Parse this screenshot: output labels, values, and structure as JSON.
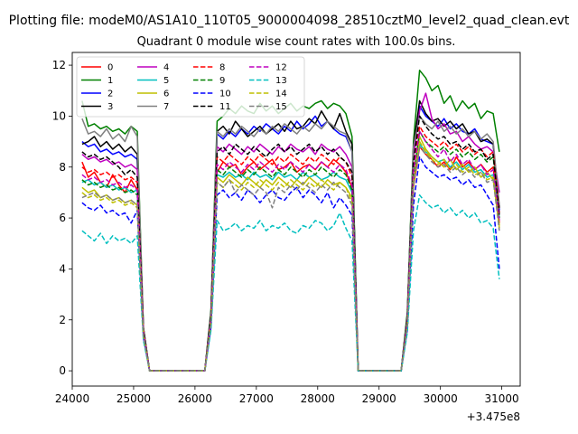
{
  "figure": {
    "suptitle": "Plotting file: modeM0/AS1A10_110T05_9000004098_28510cztM0_level2_quad_clean.evt"
  },
  "chart_data": {
    "type": "line",
    "title": "Quadrant 0 module wise count rates with 100.0s bins.",
    "xlabel": "",
    "ylabel": "",
    "x_offset_label": "+3.475e8",
    "xlim": [
      24000,
      31300
    ],
    "ylim": [
      -0.6,
      12.5
    ],
    "xticks": [
      24000,
      25000,
      26000,
      27000,
      28000,
      29000,
      30000,
      31000
    ],
    "yticks": [
      0,
      2,
      4,
      6,
      8,
      10,
      12
    ],
    "grid": false,
    "legend": {
      "position": "top-left",
      "ncol": 4
    },
    "x": [
      24160,
      24260,
      24360,
      24460,
      24560,
      24660,
      24760,
      24860,
      24960,
      25060,
      25160,
      25260,
      25360,
      25460,
      25560,
      25660,
      25760,
      25860,
      25960,
      26060,
      26160,
      26260,
      26360,
      26460,
      26560,
      26660,
      26760,
      26860,
      26960,
      27060,
      27160,
      27260,
      27360,
      27460,
      27560,
      27660,
      27760,
      27860,
      27960,
      28060,
      28160,
      28260,
      28360,
      28460,
      28560,
      28660,
      28760,
      28860,
      28960,
      29060,
      29160,
      29260,
      29360,
      29460,
      29560,
      29660,
      29760,
      29860,
      29960,
      30060,
      30160,
      30260,
      30360,
      30460,
      30560,
      30660,
      30760,
      30860,
      30960
    ],
    "series": [
      {
        "name": "0",
        "color": "#ff0000",
        "dash": "solid",
        "values": [
          8.2,
          7.6,
          7.8,
          7.4,
          7.2,
          7.7,
          7.3,
          7.0,
          7.5,
          7.1,
          1.6,
          0,
          0,
          0,
          0,
          0,
          0,
          0,
          0,
          0,
          0,
          2,
          7.8,
          8.2,
          8.0,
          8.1,
          7.7,
          8.0,
          8.2,
          7.9,
          8.1,
          8.3,
          7.9,
          8.0,
          8.2,
          7.8,
          8.0,
          8.1,
          7.9,
          8.2,
          8.0,
          8.3,
          8.1,
          7.8,
          7.2,
          0,
          0,
          0,
          0,
          0,
          0,
          0,
          0,
          1.8,
          7.2,
          8.8,
          8.5,
          8.3,
          8.0,
          8.2,
          7.9,
          8.4,
          8.0,
          8.2,
          7.9,
          8.1,
          7.8,
          8.0,
          5.8
        ]
      },
      {
        "name": "1",
        "color": "#008000",
        "dash": "solid",
        "values": [
          10.6,
          9.6,
          9.7,
          9.5,
          9.6,
          9.4,
          9.5,
          9.3,
          9.6,
          9.4,
          1.7,
          0,
          0,
          0,
          0,
          0,
          0,
          0,
          0,
          0,
          0,
          2.4,
          9.8,
          10.0,
          10.3,
          10.1,
          10.4,
          10.2,
          10.1,
          10.5,
          10.2,
          10.4,
          10.1,
          10.3,
          10.5,
          10.2,
          10.4,
          10.3,
          10.5,
          10.6,
          10.3,
          10.5,
          10.4,
          10.1,
          9.2,
          0,
          0,
          0,
          0,
          0,
          0,
          0,
          0,
          2.3,
          9.0,
          11.8,
          11.5,
          11.0,
          11.2,
          10.5,
          10.8,
          10.2,
          10.6,
          10.3,
          10.5,
          9.9,
          10.2,
          10.1,
          8.6
        ]
      },
      {
        "name": "2",
        "color": "#0000ff",
        "dash": "solid",
        "values": [
          9.0,
          8.8,
          8.9,
          8.6,
          8.7,
          8.5,
          8.6,
          8.4,
          8.5,
          8.3,
          1.6,
          0,
          0,
          0,
          0,
          0,
          0,
          0,
          0,
          0,
          0,
          2.2,
          9.3,
          9.1,
          9.4,
          9.2,
          9.5,
          9.3,
          9.6,
          9.4,
          9.7,
          9.5,
          9.3,
          9.6,
          9.4,
          9.8,
          9.5,
          9.7,
          10.0,
          9.6,
          9.8,
          9.5,
          9.3,
          9.2,
          8.6,
          0,
          0,
          0,
          0,
          0,
          0,
          0,
          0,
          2.1,
          8.6,
          10.4,
          10.0,
          9.8,
          9.6,
          9.9,
          9.5,
          9.7,
          9.4,
          9.3,
          9.5,
          9.1,
          9.0,
          8.9,
          6.3
        ]
      },
      {
        "name": "3",
        "color": "#000000",
        "dash": "solid",
        "values": [
          8.9,
          9.0,
          9.2,
          8.8,
          9.0,
          8.7,
          8.9,
          8.6,
          8.8,
          8.5,
          1.7,
          0,
          0,
          0,
          0,
          0,
          0,
          0,
          0,
          0,
          0,
          2.3,
          9.4,
          9.6,
          9.3,
          9.8,
          9.5,
          9.2,
          9.4,
          9.6,
          9.3,
          9.5,
          9.7,
          9.4,
          9.8,
          9.5,
          9.6,
          9.9,
          9.7,
          10.2,
          9.8,
          9.5,
          10.1,
          9.4,
          8.9,
          0,
          0,
          0,
          0,
          0,
          0,
          0,
          0,
          2.2,
          8.8,
          10.6,
          10.1,
          9.8,
          9.9,
          9.6,
          9.8,
          9.5,
          9.7,
          9.3,
          9.4,
          9.0,
          9.1,
          8.9,
          6.4
        ]
      },
      {
        "name": "4",
        "color": "#bf00bf",
        "dash": "solid",
        "values": [
          8.5,
          8.3,
          8.4,
          8.2,
          8.3,
          8.1,
          8.2,
          8.0,
          8.1,
          7.9,
          1.6,
          0,
          0,
          0,
          0,
          0,
          0,
          0,
          0,
          0,
          0,
          2.1,
          8.8,
          8.6,
          8.9,
          8.7,
          8.5,
          8.8,
          8.6,
          8.9,
          8.7,
          8.5,
          8.8,
          8.6,
          8.9,
          8.7,
          8.6,
          8.8,
          8.5,
          8.9,
          8.7,
          8.6,
          8.8,
          8.5,
          8.0,
          0,
          0,
          0,
          0,
          0,
          0,
          0,
          0,
          2.0,
          8.4,
          10.2,
          10.9,
          9.9,
          9.5,
          9.7,
          9.3,
          9.4,
          9.0,
          9.2,
          8.9,
          8.7,
          8.8,
          8.6,
          7.0
        ]
      },
      {
        "name": "5",
        "color": "#00bfbf",
        "dash": "solid",
        "values": [
          7.4,
          7.5,
          7.3,
          7.4,
          7.2,
          7.3,
          7.1,
          7.2,
          7.0,
          7.1,
          1.5,
          0,
          0,
          0,
          0,
          0,
          0,
          0,
          0,
          0,
          0,
          2.0,
          7.7,
          7.6,
          7.8,
          7.6,
          7.7,
          7.5,
          7.8,
          7.6,
          7.7,
          7.5,
          7.8,
          7.6,
          7.7,
          7.5,
          7.8,
          7.6,
          7.7,
          7.5,
          7.6,
          7.8,
          7.6,
          7.5,
          7.0,
          0,
          0,
          0,
          0,
          0,
          0,
          0,
          0,
          1.9,
          7.4,
          8.9,
          8.6,
          8.4,
          8.2,
          8.3,
          8.0,
          8.2,
          7.9,
          8.1,
          7.8,
          7.9,
          7.6,
          7.7,
          6.0
        ]
      },
      {
        "name": "6",
        "color": "#bfbf00",
        "dash": "solid",
        "values": [
          7.2,
          7.0,
          7.1,
          6.8,
          6.9,
          6.7,
          6.8,
          6.6,
          6.7,
          6.5,
          1.4,
          0,
          0,
          0,
          0,
          0,
          0,
          0,
          0,
          0,
          0,
          1.9,
          7.6,
          7.4,
          7.7,
          7.5,
          7.3,
          7.6,
          7.4,
          7.2,
          7.5,
          7.3,
          7.6,
          7.4,
          7.2,
          7.5,
          7.3,
          7.6,
          7.4,
          7.2,
          7.5,
          7.3,
          7.4,
          7.2,
          6.8,
          0,
          0,
          0,
          0,
          0,
          0,
          0,
          0,
          1.8,
          7.2,
          9.2,
          8.7,
          8.4,
          8.2,
          8.0,
          8.3,
          7.9,
          8.1,
          7.8,
          8.0,
          7.6,
          7.8,
          7.5,
          5.7
        ]
      },
      {
        "name": "7",
        "color": "#808080",
        "dash": "solid",
        "values": [
          9.9,
          9.3,
          9.4,
          9.2,
          9.5,
          9.1,
          9.3,
          9.0,
          9.6,
          9.2,
          1.7,
          0,
          0,
          0,
          0,
          0,
          0,
          0,
          0,
          0,
          0,
          2.3,
          9.4,
          9.2,
          9.5,
          9.3,
          9.6,
          9.4,
          9.2,
          9.5,
          9.3,
          9.6,
          9.4,
          9.7,
          9.5,
          9.3,
          9.6,
          9.4,
          9.7,
          9.5,
          9.8,
          9.6,
          9.4,
          9.3,
          8.6,
          0,
          0,
          0,
          0,
          0,
          0,
          0,
          0,
          2.1,
          8.8,
          10.0,
          9.7,
          9.5,
          9.8,
          9.4,
          9.6,
          9.3,
          9.5,
          9.2,
          9.4,
          9.1,
          9.3,
          9.0,
          6.5
        ]
      },
      {
        "name": "8",
        "color": "#ff0000",
        "dash": "dashed",
        "values": [
          8.0,
          7.8,
          7.9,
          7.7,
          7.8,
          7.6,
          7.7,
          7.5,
          7.6,
          7.4,
          1.6,
          0,
          0,
          0,
          0,
          0,
          0,
          0,
          0,
          0,
          0,
          2.1,
          8.4,
          8.2,
          8.5,
          8.3,
          8.1,
          8.4,
          8.2,
          8.5,
          8.3,
          8.1,
          8.4,
          8.2,
          8.5,
          8.3,
          8.1,
          8.4,
          8.2,
          8.5,
          8.3,
          8.1,
          8.4,
          8.2,
          7.6,
          0,
          0,
          0,
          0,
          0,
          0,
          0,
          0,
          2.0,
          8.0,
          9.6,
          9.2,
          9.0,
          8.8,
          9.0,
          8.7,
          8.9,
          8.6,
          8.8,
          8.5,
          8.7,
          8.4,
          8.6,
          6.2
        ]
      },
      {
        "name": "9",
        "color": "#008000",
        "dash": "dashed",
        "values": [
          7.5,
          7.3,
          7.4,
          7.2,
          7.3,
          7.1,
          7.2,
          7.0,
          7.1,
          6.9,
          1.5,
          0,
          0,
          0,
          0,
          0,
          0,
          0,
          0,
          0,
          0,
          2.0,
          7.9,
          7.7,
          8.0,
          7.8,
          7.6,
          7.9,
          7.7,
          8.0,
          7.8,
          7.6,
          7.9,
          7.7,
          8.0,
          7.8,
          7.6,
          7.9,
          7.7,
          8.0,
          7.8,
          7.6,
          7.9,
          7.7,
          7.1,
          0,
          0,
          0,
          0,
          0,
          0,
          0,
          0,
          1.9,
          7.6,
          9.4,
          9.0,
          8.8,
          8.6,
          8.8,
          8.5,
          8.7,
          8.4,
          8.6,
          8.3,
          8.5,
          8.2,
          8.4,
          6.0
        ]
      },
      {
        "name": "10",
        "color": "#0000ff",
        "dash": "dashed",
        "values": [
          6.6,
          6.4,
          6.3,
          6.5,
          6.2,
          6.3,
          6.1,
          6.2,
          5.8,
          6.3,
          1.3,
          0,
          0,
          0,
          0,
          0,
          0,
          0,
          0,
          0,
          0,
          1.7,
          6.9,
          7.1,
          6.8,
          7.0,
          6.7,
          7.1,
          6.9,
          6.6,
          6.9,
          7.1,
          6.8,
          6.7,
          7.0,
          7.2,
          6.8,
          7.1,
          6.9,
          6.6,
          7.0,
          6.4,
          6.8,
          6.5,
          6.1,
          0,
          0,
          0,
          0,
          0,
          0,
          0,
          0,
          1.6,
          6.5,
          8.4,
          8.0,
          7.8,
          7.6,
          7.7,
          7.5,
          7.6,
          7.3,
          7.5,
          7.2,
          7.3,
          6.9,
          6.5,
          4.0
        ]
      },
      {
        "name": "11",
        "color": "#000000",
        "dash": "dashed",
        "values": [
          8.6,
          8.4,
          8.5,
          8.3,
          8.4,
          8.2,
          8.0,
          7.7,
          7.9,
          7.6,
          1.6,
          0,
          0,
          0,
          0,
          0,
          0,
          0,
          0,
          0,
          0,
          2.2,
          8.6,
          8.8,
          8.5,
          8.9,
          8.7,
          8.5,
          8.8,
          8.6,
          8.4,
          8.7,
          8.9,
          8.6,
          8.8,
          8.5,
          8.7,
          8.9,
          8.6,
          8.8,
          8.5,
          8.7,
          8.4,
          8.2,
          7.8,
          0,
          0,
          0,
          0,
          0,
          0,
          0,
          0,
          2.0,
          8.2,
          10.0,
          9.6,
          9.3,
          9.1,
          9.2,
          8.9,
          9.0,
          8.7,
          8.9,
          8.6,
          8.7,
          8.3,
          8.5,
          6.1
        ]
      },
      {
        "name": "12",
        "color": "#bf00bf",
        "dash": "dashed",
        "values": [
          7.7,
          7.5,
          7.6,
          7.4,
          7.5,
          7.3,
          7.4,
          7.2,
          7.3,
          7.1,
          1.5,
          0,
          0,
          0,
          0,
          0,
          0,
          0,
          0,
          0,
          0,
          2.0,
          8.1,
          7.9,
          8.2,
          8.0,
          7.8,
          8.1,
          7.9,
          8.2,
          8.0,
          7.8,
          8.1,
          7.9,
          8.2,
          8.0,
          7.8,
          8.1,
          7.9,
          8.2,
          8.0,
          7.8,
          8.1,
          7.9,
          7.3,
          0,
          0,
          0,
          0,
          0,
          0,
          0,
          0,
          1.9,
          7.8,
          9.4,
          9.0,
          8.7,
          8.4,
          8.7,
          8.2,
          8.5,
          8.1,
          8.3,
          7.9,
          8.1,
          7.7,
          7.9,
          5.9
        ]
      },
      {
        "name": "13",
        "color": "#00bfbf",
        "dash": "dashed",
        "values": [
          5.5,
          5.3,
          5.1,
          5.4,
          5.0,
          5.3,
          5.1,
          5.2,
          5.0,
          5.3,
          1.2,
          0,
          0,
          0,
          0,
          0,
          0,
          0,
          0,
          0,
          0,
          1.6,
          5.9,
          5.5,
          5.6,
          5.8,
          5.5,
          5.7,
          5.6,
          5.9,
          5.5,
          5.7,
          5.6,
          5.8,
          5.5,
          5.4,
          5.7,
          5.6,
          5.9,
          5.8,
          5.5,
          5.7,
          6.2,
          5.6,
          5.1,
          0,
          0,
          0,
          0,
          0,
          0,
          0,
          0,
          1.5,
          5.5,
          6.9,
          6.6,
          6.4,
          6.5,
          6.2,
          6.4,
          6.1,
          6.3,
          6.0,
          6.2,
          5.8,
          5.9,
          5.6,
          3.6
        ]
      },
      {
        "name": "14",
        "color": "#bfbf00",
        "dash": "dashed",
        "values": [
          7.0,
          6.8,
          6.9,
          6.7,
          6.8,
          6.6,
          6.7,
          6.5,
          6.6,
          6.4,
          1.4,
          0,
          0,
          0,
          0,
          0,
          0,
          0,
          0,
          0,
          0,
          1.9,
          7.4,
          7.2,
          7.5,
          7.3,
          7.1,
          7.4,
          7.2,
          7.5,
          7.3,
          7.1,
          7.4,
          7.2,
          7.5,
          7.3,
          7.1,
          7.4,
          7.2,
          7.5,
          7.3,
          7.1,
          7.4,
          7.2,
          6.6,
          0,
          0,
          0,
          0,
          0,
          0,
          0,
          0,
          1.8,
          7.4,
          9.0,
          8.6,
          8.3,
          8.1,
          8.3,
          7.9,
          8.1,
          7.8,
          8.0,
          7.7,
          7.8,
          7.5,
          7.6,
          5.6
        ]
      },
      {
        "name": "15",
        "color": "#808080",
        "dash": "dashed",
        "values": [
          6.8,
          6.9,
          7.0,
          6.8,
          6.9,
          6.7,
          6.8,
          6.6,
          6.7,
          6.5,
          1.4,
          0,
          0,
          0,
          0,
          0,
          0,
          0,
          0,
          0,
          0,
          1.9,
          7.4,
          7.2,
          7.5,
          7.0,
          7.3,
          7.1,
          6.9,
          7.2,
          7.0,
          6.4,
          7.2,
          7.0,
          7.3,
          7.1,
          7.4,
          7.2,
          7.0,
          7.3,
          7.1,
          7.4,
          7.2,
          7.0,
          6.5,
          0,
          0,
          0,
          0,
          0,
          0,
          0,
          0,
          1.8,
          7.3,
          8.8,
          8.5,
          8.2,
          8.0,
          8.1,
          7.8,
          8.0,
          7.7,
          7.9,
          7.6,
          7.8,
          7.4,
          7.5,
          5.5
        ]
      }
    ]
  }
}
